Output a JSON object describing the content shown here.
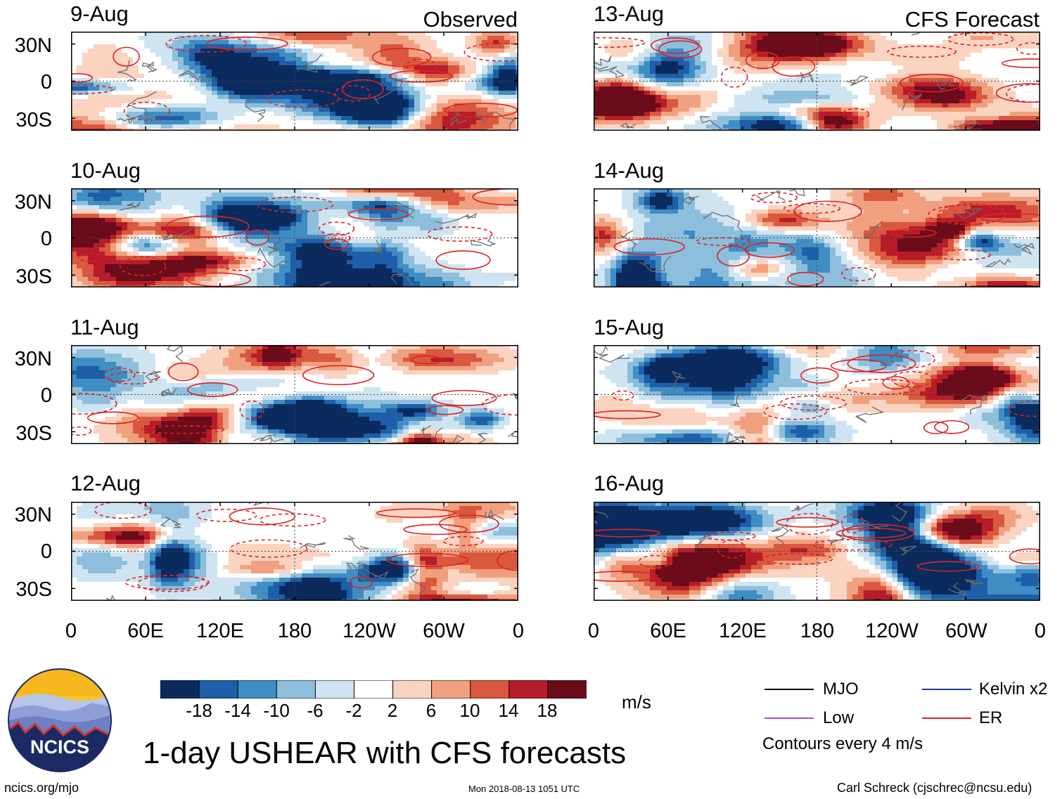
{
  "chart_data": {
    "type": "heatmap",
    "title": "1-day USHEAR with CFS forecasts",
    "variable": "USHEAR",
    "units": "m/s",
    "panels": [
      {
        "date": "9-Aug",
        "tag": "Observed"
      },
      {
        "date": "10-Aug",
        "tag": ""
      },
      {
        "date": "11-Aug",
        "tag": ""
      },
      {
        "date": "12-Aug",
        "tag": ""
      },
      {
        "date": "13-Aug",
        "tag": "CFS Forecast"
      },
      {
        "date": "14-Aug",
        "tag": ""
      },
      {
        "date": "15-Aug",
        "tag": ""
      },
      {
        "date": "16-Aug",
        "tag": ""
      }
    ],
    "lat_ticks": [
      "30N",
      "0",
      "30S"
    ],
    "lat_values": [
      30,
      0,
      -30
    ],
    "lon_ticks": [
      "0",
      "60E",
      "120E",
      "180",
      "120W",
      "60W",
      "0"
    ],
    "lon_values": [
      0,
      60,
      120,
      180,
      240,
      300,
      360
    ],
    "lat_range": [
      -40,
      40
    ],
    "lon_range": [
      0,
      360
    ],
    "colorbar": {
      "tick_labels": [
        "-18",
        "-14",
        "-10",
        "-6",
        "-2",
        "2",
        "6",
        "10",
        "14",
        "18"
      ],
      "colors": [
        "#0b2b5e",
        "#1f5ea8",
        "#3f8dc3",
        "#8dbfdd",
        "#cfe4f1",
        "#ffffff",
        "#fbd3c1",
        "#f1a07f",
        "#d9583f",
        "#b71c2b",
        "#6b0c1a"
      ]
    },
    "legend": {
      "items": [
        {
          "label": "MJO",
          "color": "#000000"
        },
        {
          "label": "Kelvin x2",
          "color": "#2233aa"
        },
        {
          "label": "Low",
          "color": "#a64ce0"
        },
        {
          "label": "ER",
          "color": "#dd2222"
        }
      ],
      "note": "Contours every 4 m/s"
    }
  },
  "footer": {
    "left": "ncics.org/mjo",
    "center": "Mon 2018-08-13 1051 UTC",
    "right": "Carl Schreck (cjschrec@ncsu.edu)"
  },
  "logo": {
    "text": "NCICS"
  }
}
